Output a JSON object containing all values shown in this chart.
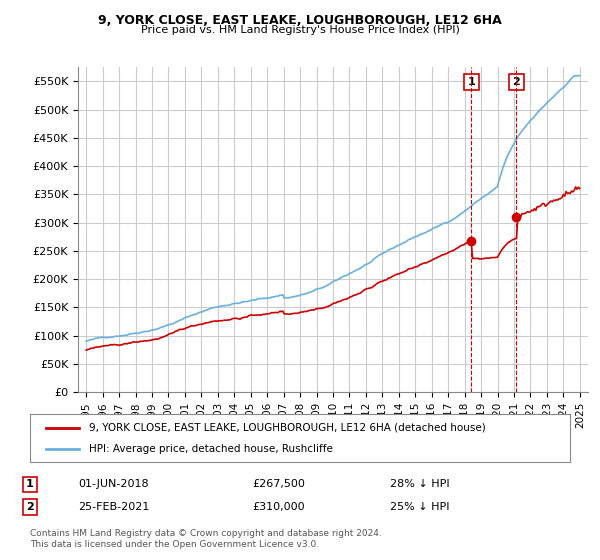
{
  "title": "9, YORK CLOSE, EAST LEAKE, LOUGHBOROUGH, LE12 6HA",
  "subtitle": "Price paid vs. HM Land Registry's House Price Index (HPI)",
  "hpi_color": "#6ab0e0",
  "price_color": "#cc0000",
  "marker_color": "#cc0000",
  "vline_color": "#cc0000",
  "background_color": "#ffffff",
  "grid_color": "#cccccc",
  "ylim": [
    0,
    575000
  ],
  "yticks": [
    0,
    50000,
    100000,
    150000,
    200000,
    250000,
    300000,
    350000,
    400000,
    450000,
    500000,
    550000
  ],
  "ytick_labels": [
    "£0",
    "£50K",
    "£100K",
    "£150K",
    "£200K",
    "£250K",
    "£300K",
    "£350K",
    "£400K",
    "£450K",
    "£500K",
    "£550K"
  ],
  "year_start": 1995,
  "year_end": 2025,
  "purchase1_year": 2018.417,
  "purchase1_price": 267500,
  "purchase2_year": 2021.146,
  "purchase2_price": 310000,
  "legend_entry1": "9, YORK CLOSE, EAST LEAKE, LOUGHBOROUGH, LE12 6HA (detached house)",
  "legend_entry2": "HPI: Average price, detached house, Rushcliffe",
  "annotation1_label": "1",
  "annotation1_date": "01-JUN-2018",
  "annotation1_price": "£267,500",
  "annotation1_hpi": "28% ↓ HPI",
  "annotation2_label": "2",
  "annotation2_date": "25-FEB-2021",
  "annotation2_price": "£310,000",
  "annotation2_hpi": "25% ↓ HPI",
  "footer": "Contains HM Land Registry data © Crown copyright and database right 2024.\nThis data is licensed under the Open Government Licence v3.0."
}
